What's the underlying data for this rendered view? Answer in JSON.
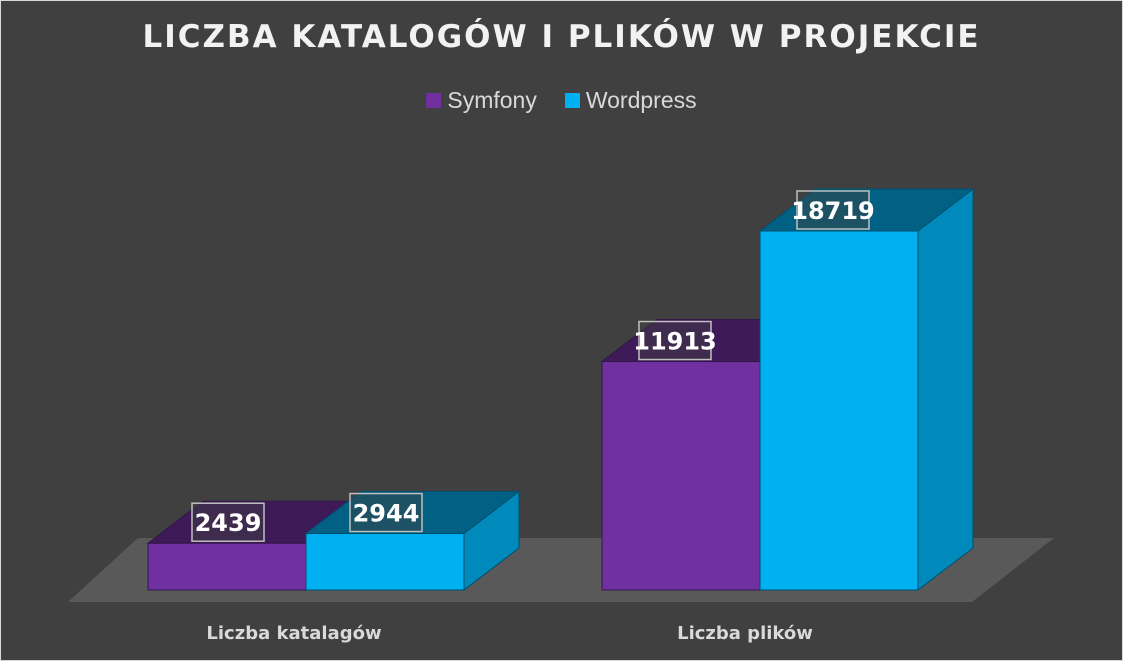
{
  "chart_data": {
    "type": "bar",
    "variant": "3d-clustered-column",
    "title": "LICZBA KATALOGÓW I PLIKÓW W PROJEKCIE",
    "categories": [
      "Liczba katalagów",
      "Liczba plików"
    ],
    "series": [
      {
        "name": "Symfony",
        "values": [
          2439,
          11913
        ],
        "color": "#7030a0"
      },
      {
        "name": "Wordpress",
        "values": [
          2944,
          18719
        ],
        "color": "#00b0f0"
      }
    ],
    "data_labels": true,
    "legend_position": "top",
    "grid": false
  },
  "colors": {
    "background": "#404040",
    "floor": "#595959",
    "text": "#d9d9d9"
  }
}
